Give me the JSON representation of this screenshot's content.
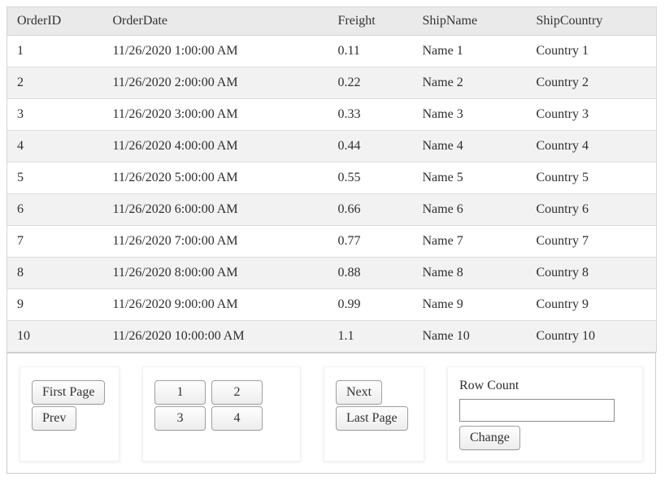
{
  "table": {
    "columns": [
      "OrderID",
      "OrderDate",
      "Freight",
      "ShipName",
      "ShipCountry"
    ],
    "rows": [
      [
        "1",
        "11/26/2020 1:00:00 AM",
        "0.11",
        "Name 1",
        "Country 1"
      ],
      [
        "2",
        "11/26/2020 2:00:00 AM",
        "0.22",
        "Name 2",
        "Country 2"
      ],
      [
        "3",
        "11/26/2020 3:00:00 AM",
        "0.33",
        "Name 3",
        "Country 3"
      ],
      [
        "4",
        "11/26/2020 4:00:00 AM",
        "0.44",
        "Name 4",
        "Country 4"
      ],
      [
        "5",
        "11/26/2020 5:00:00 AM",
        "0.55",
        "Name 5",
        "Country 5"
      ],
      [
        "6",
        "11/26/2020 6:00:00 AM",
        "0.66",
        "Name 6",
        "Country 6"
      ],
      [
        "7",
        "11/26/2020 7:00:00 AM",
        "0.77",
        "Name 7",
        "Country 7"
      ],
      [
        "8",
        "11/26/2020 8:00:00 AM",
        "0.88",
        "Name 8",
        "Country 8"
      ],
      [
        "9",
        "11/26/2020 9:00:00 AM",
        "0.99",
        "Name 9",
        "Country 9"
      ],
      [
        "10",
        "11/26/2020 10:00:00 AM",
        "1.1",
        "Name 10",
        "Country 10"
      ]
    ]
  },
  "pager": {
    "first_label": "First Page",
    "prev_label": "Prev",
    "page_buttons": [
      "1",
      "2",
      "3",
      "4"
    ],
    "next_label": "Next",
    "last_label": "Last Page",
    "row_count_label": "Row Count",
    "row_count_value": "",
    "change_label": "Change"
  },
  "colors": {
    "header_bg": "#eaeaea",
    "alt_row_bg": "#f2f2f2",
    "table_border": "#d4d4d4",
    "pager_border": "#cccccc"
  }
}
